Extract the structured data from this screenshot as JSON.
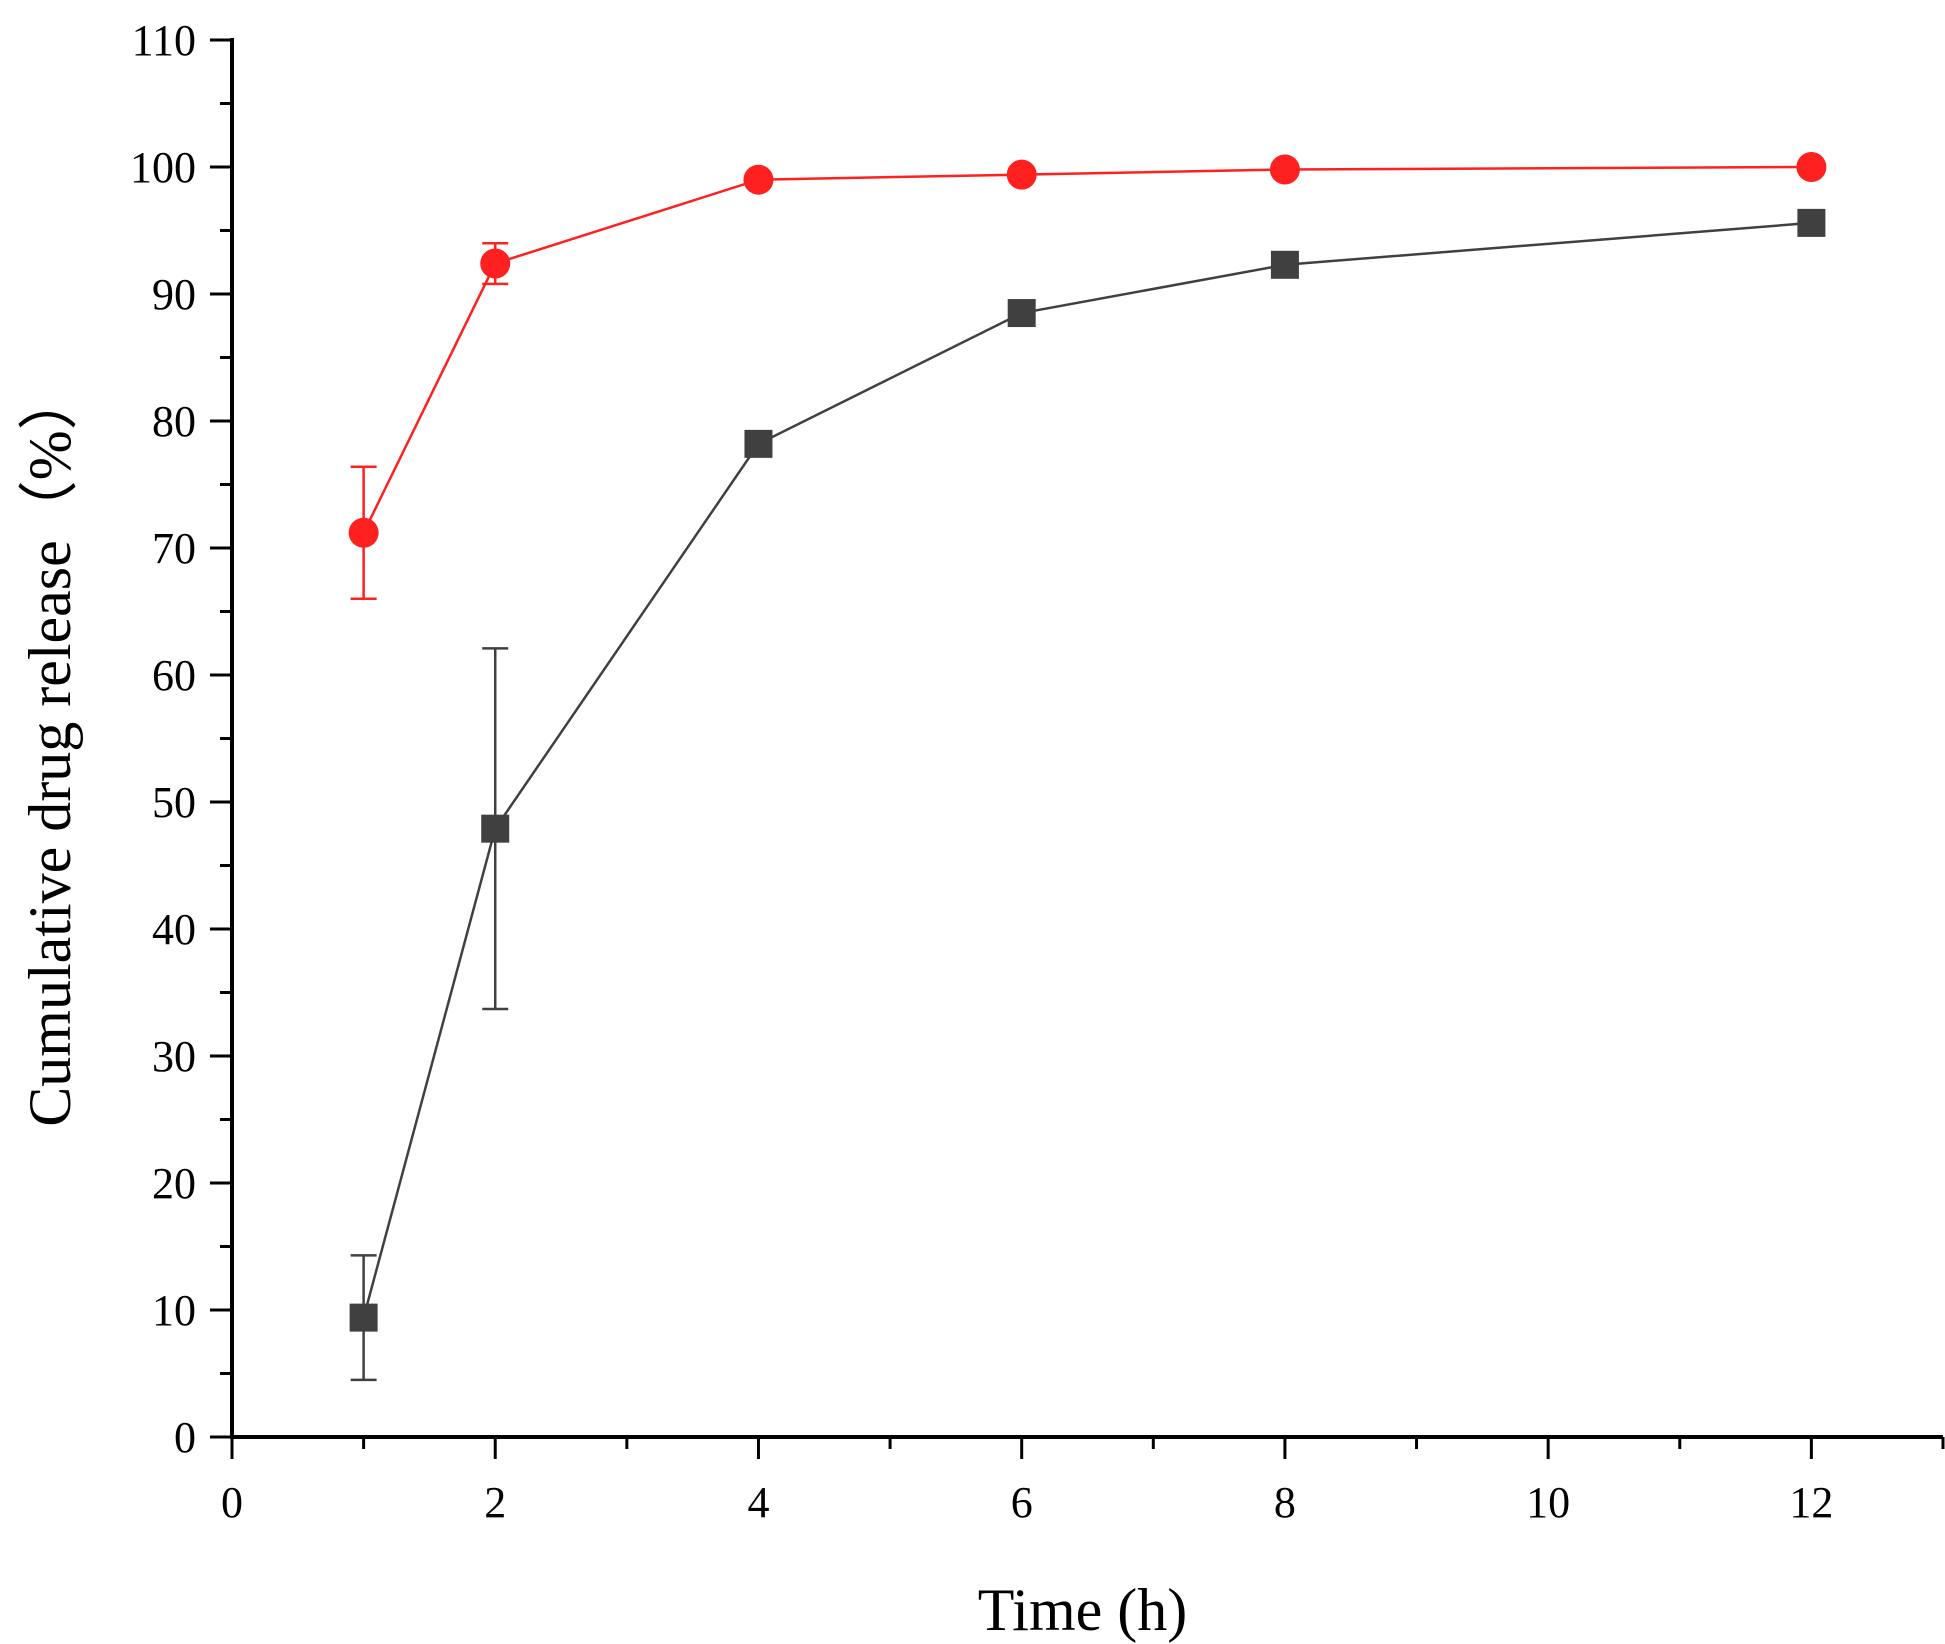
{
  "chart_data": {
    "type": "line",
    "title": "",
    "xlabel": "Time (h)",
    "ylabel": "Cumulative drug release（%）",
    "xlim": [
      0,
      13
    ],
    "ylim": [
      0,
      110
    ],
    "x_ticks": [
      0,
      2,
      4,
      6,
      8,
      10,
      12
    ],
    "y_ticks": [
      0,
      10,
      20,
      30,
      40,
      50,
      60,
      70,
      80,
      90,
      100,
      110
    ],
    "grid": false,
    "legend": "none",
    "series": [
      {
        "name": "red-circle-series",
        "color": "#ff2020",
        "marker": "circle",
        "x": [
          1,
          2,
          4,
          6,
          8,
          12
        ],
        "values": [
          71.2,
          92.4,
          99.0,
          99.4,
          99.8,
          100.0
        ],
        "errors": [
          5.2,
          1.6,
          0,
          0,
          0,
          0
        ]
      },
      {
        "name": "gray-square-series",
        "color": "#404040",
        "marker": "square",
        "x": [
          1,
          2,
          4,
          6,
          8,
          12
        ],
        "values": [
          9.4,
          47.9,
          78.2,
          88.5,
          92.3,
          95.6
        ],
        "errors": [
          4.9,
          14.2,
          0,
          0,
          0,
          0
        ]
      }
    ]
  }
}
